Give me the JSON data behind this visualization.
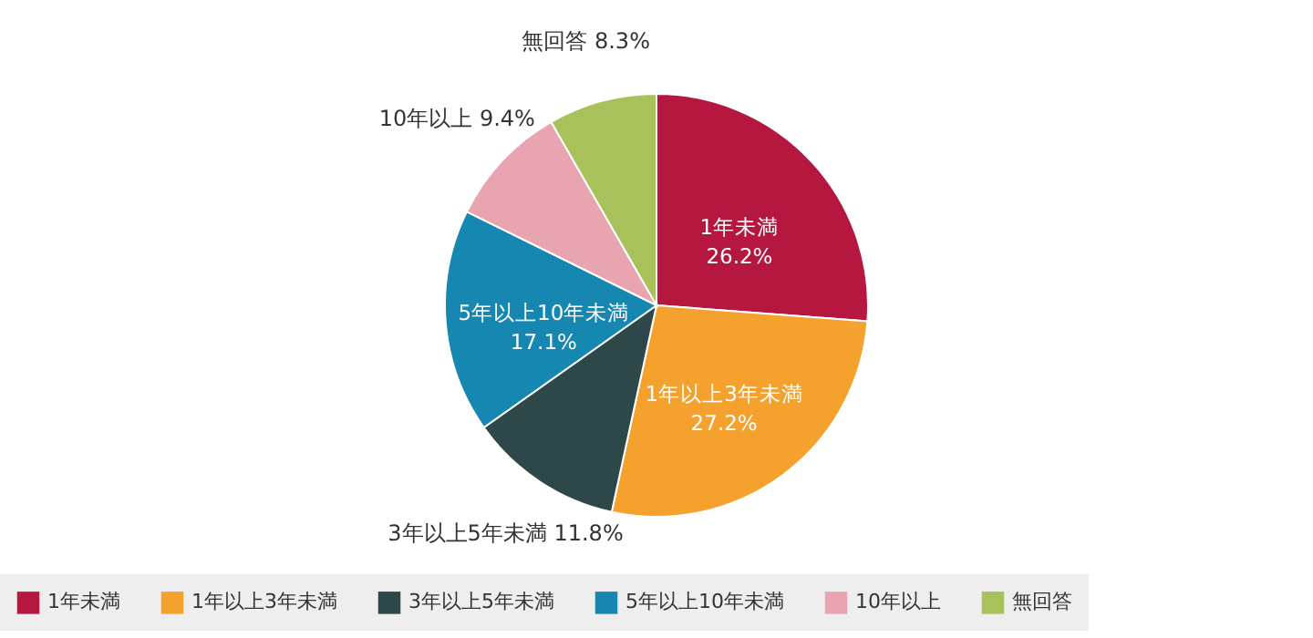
{
  "chart_data": {
    "type": "pie",
    "categories": [
      "1年未満",
      "1年以上3年未満",
      "3年以上5年未満",
      "5年以上10年未満",
      "10年以上",
      "無回答"
    ],
    "values": [
      26.2,
      27.2,
      11.8,
      17.1,
      9.4,
      8.3
    ],
    "value_labels": [
      "26.2%",
      "27.2%",
      "11.8%",
      "17.1%",
      "9.4%",
      "8.3%"
    ],
    "colors": [
      "#b5173f",
      "#f4a12d",
      "#2e4748",
      "#1587b1",
      "#e8a5b0",
      "#a8c15a"
    ],
    "legend": "bottom"
  }
}
